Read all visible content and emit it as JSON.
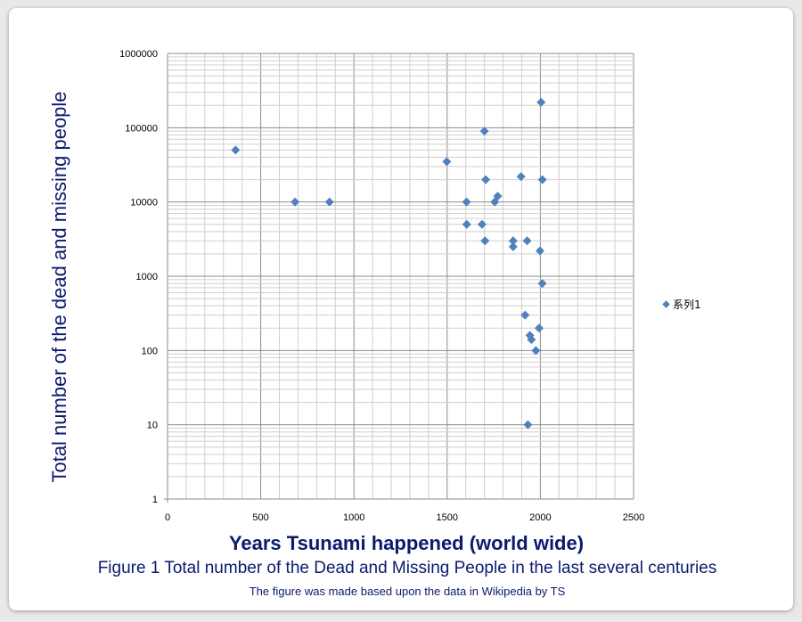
{
  "chart_data": {
    "type": "scatter",
    "ylabel": "Total number of the dead and missing people",
    "xlabel": "Years Tsunami happened (world wide)",
    "caption": "Figure 1 Total number of the Dead and Missing People in the last several centuries",
    "note": "The figure was made based upon the data in Wikipedia by TS",
    "xlim": [
      0,
      2500
    ],
    "x_ticks": [
      0,
      500,
      1000,
      1500,
      2000,
      2500
    ],
    "y_scale": "log",
    "ylim": [
      1,
      1000000
    ],
    "y_ticks": [
      "1",
      "10",
      "100",
      "1000",
      "10000",
      "100000",
      "1000000"
    ],
    "grid": true,
    "legend_position": "right",
    "marker_color": "#4f81bd",
    "series": [
      {
        "name": "系列1",
        "points": [
          {
            "x": 365,
            "y": 50000
          },
          {
            "x": 684,
            "y": 10000
          },
          {
            "x": 869,
            "y": 10000
          },
          {
            "x": 1498,
            "y": 35000
          },
          {
            "x": 1604,
            "y": 10000
          },
          {
            "x": 1605,
            "y": 5000
          },
          {
            "x": 1687,
            "y": 5000
          },
          {
            "x": 1700,
            "y": 90000
          },
          {
            "x": 1703,
            "y": 3000
          },
          {
            "x": 1707,
            "y": 20000
          },
          {
            "x": 1755,
            "y": 10000
          },
          {
            "x": 1771,
            "y": 12000
          },
          {
            "x": 1854,
            "y": 3000
          },
          {
            "x": 1854,
            "y": 2500
          },
          {
            "x": 1896,
            "y": 22000
          },
          {
            "x": 1918,
            "y": 300
          },
          {
            "x": 1929,
            "y": 3000
          },
          {
            "x": 1933,
            "y": 10
          },
          {
            "x": 1944,
            "y": 160
          },
          {
            "x": 1952,
            "y": 140
          },
          {
            "x": 1976,
            "y": 100
          },
          {
            "x": 1993,
            "y": 200
          },
          {
            "x": 1998,
            "y": 2200
          },
          {
            "x": 2004,
            "y": 220000
          },
          {
            "x": 2010,
            "y": 800
          },
          {
            "x": 2011,
            "y": 20000
          }
        ]
      }
    ]
  }
}
